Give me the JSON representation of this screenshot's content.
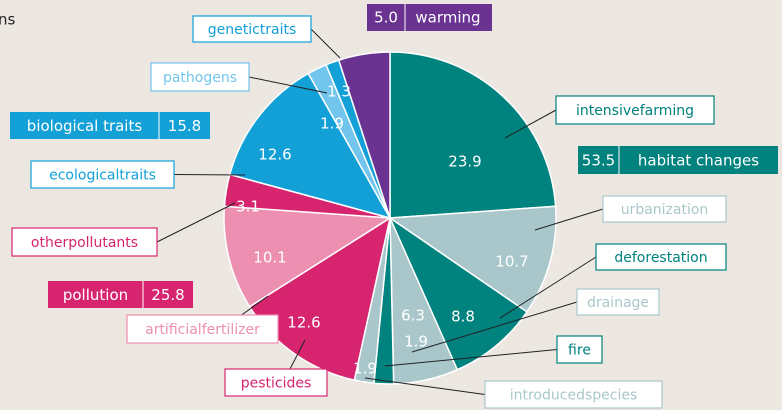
{
  "chart_data": {
    "type": "pie",
    "title": "ns",
    "categories": [
      "intensivefarming",
      "urbanization",
      "deforestation",
      "drainage",
      "fire",
      "introducedspecies",
      "pesticides",
      "artificialfertilizer",
      "otherpollutants",
      "ecologicaltraits",
      "pathogens",
      "genetictraits",
      "warming"
    ],
    "values": [
      23.9,
      10.7,
      8.8,
      6.3,
      1.9,
      1.9,
      12.6,
      10.1,
      3.1,
      12.6,
      1.9,
      1.3,
      5.0
    ],
    "value_labels": [
      "23.9",
      "10.7",
      "8.8",
      "6.3",
      "1.9",
      "1.9",
      "12.6",
      "10.1",
      "3.1",
      "12.6",
      "1.9",
      "1.3",
      "5.0"
    ],
    "colors": [
      "#00827f",
      "#a9c7ca",
      "#00827f",
      "#a9c7ca",
      "#00827f",
      "#a9c7ca",
      "#d7246f",
      "#ec8fb0",
      "#d7246f",
      "#12a0d7",
      "#72c5ec",
      "#12a0d7",
      "#6a3291"
    ],
    "groups": [
      {
        "name": "habitat changes",
        "value": 53.5,
        "color": "#00827f"
      },
      {
        "name": "pollution",
        "value": 25.8,
        "color": "#d7246f"
      },
      {
        "name": "biological traits",
        "value": 15.8,
        "color": "#12a0d7"
      }
    ]
  }
}
